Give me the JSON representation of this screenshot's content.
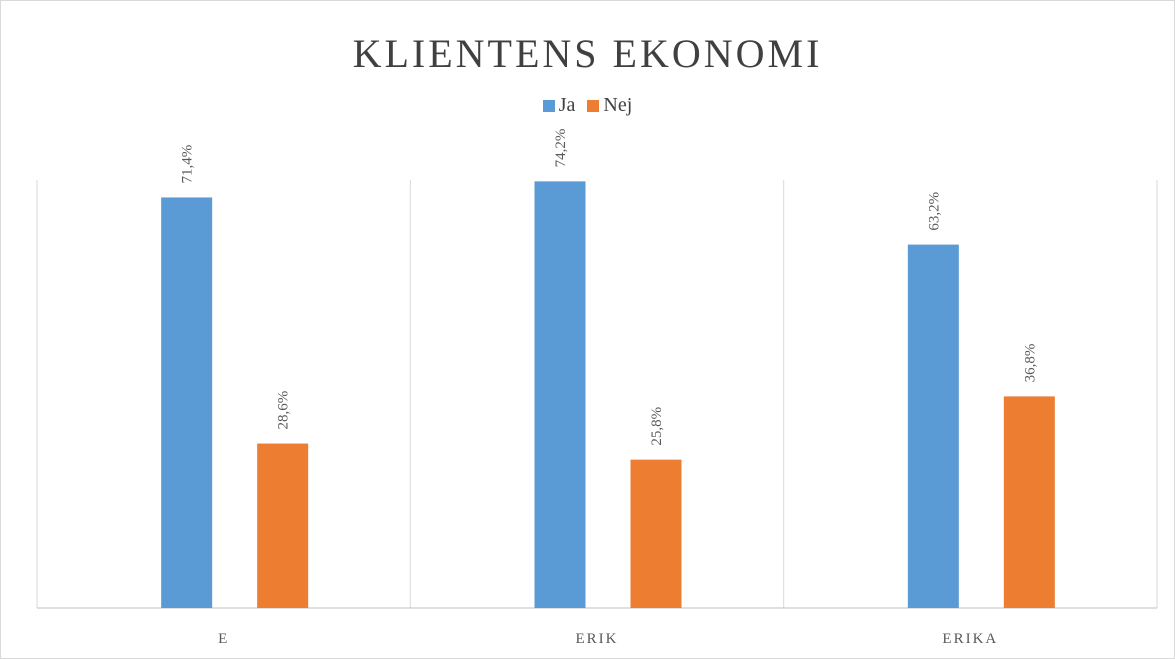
{
  "chart_data": {
    "type": "bar",
    "title": "KLIENTENS EKONOMI",
    "categories": [
      "E",
      "ERIK",
      "ERIKA"
    ],
    "series": [
      {
        "name": "Ja",
        "color": "#5B9BD5",
        "values": [
          71.4,
          74.2,
          63.2
        ],
        "labels": [
          "71,4%",
          "74,2%",
          "63,2%"
        ]
      },
      {
        "name": "Nej",
        "color": "#ED7D31",
        "values": [
          28.6,
          25.8,
          36.8
        ],
        "labels": [
          "28,6%",
          "25,8%",
          "36,8%"
        ]
      }
    ],
    "ylim": [
      0,
      80
    ],
    "legend_position": "top",
    "grid": "vertical-separators"
  }
}
